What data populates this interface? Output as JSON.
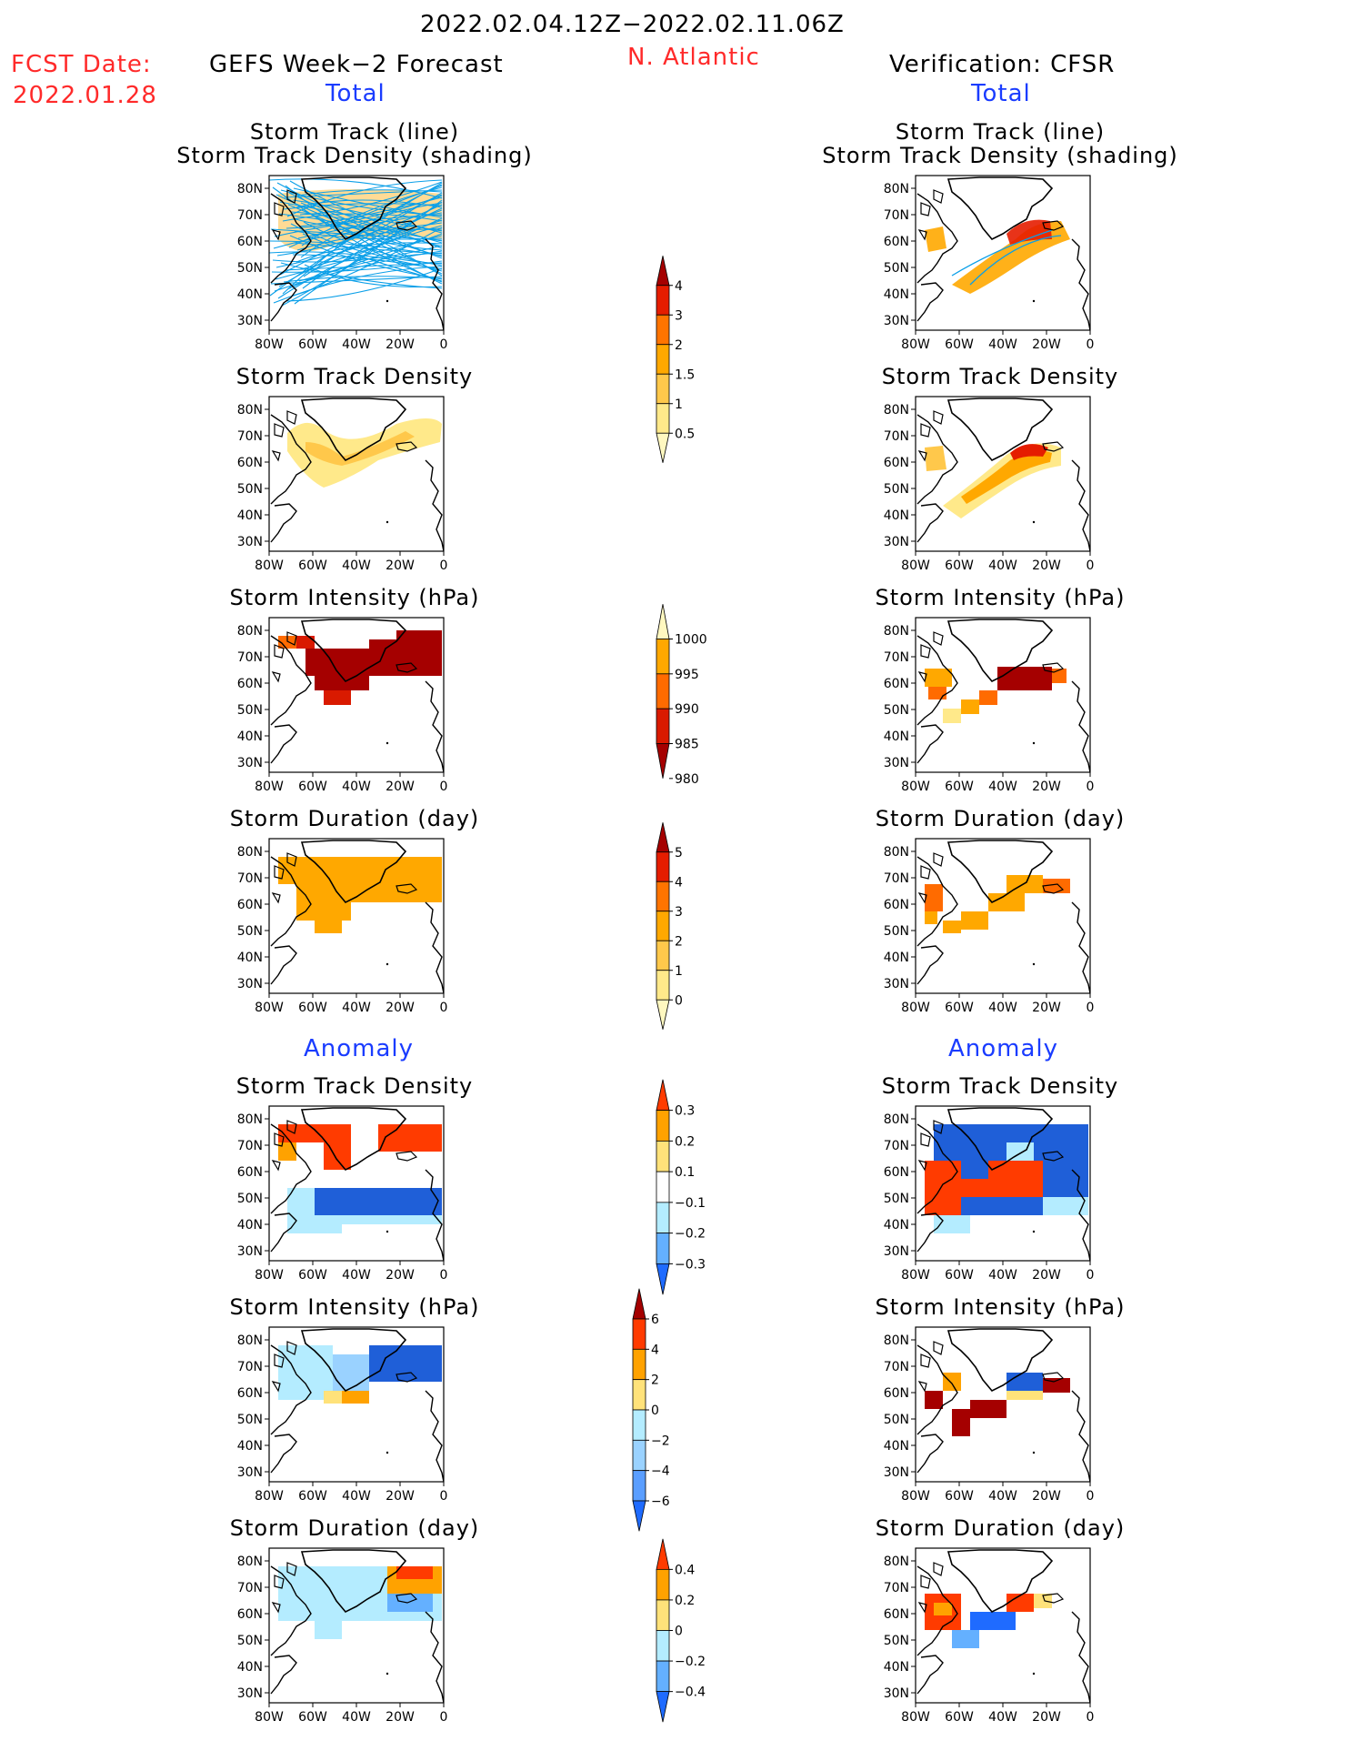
{
  "header": {
    "period": "2022.02.04.12Z−2022.02.11.06Z",
    "fcst_label": "FCST Date:",
    "fcst_date": "2022.01.28",
    "forecast_title": "GEFS Week−2 Forecast",
    "region": "N. Atlantic",
    "verification_title": "Verification: CFSR",
    "total_left": "Total",
    "total_right": "Total",
    "anomaly_left": "Anomaly",
    "anomaly_right": "Anomaly"
  },
  "panel_titles": {
    "track_line": "Storm Track (line)",
    "track_shading": "Storm Track Density (shading)",
    "density": "Storm Track Density",
    "intensity": "Storm Intensity (hPa)",
    "duration": "Storm Duration (day)"
  },
  "axes": {
    "lat_ticks": [
      "80N",
      "70N",
      "60N",
      "50N",
      "40N",
      "30N"
    ],
    "lon_ticks": [
      "80W",
      "60W",
      "40W",
      "20W",
      "0"
    ]
  },
  "colorbars": [
    {
      "id": "total-density",
      "labels": [
        "4",
        "3",
        "2",
        "1.5",
        "1",
        "0.5"
      ],
      "colors": [
        "#a50000",
        "#e51d00",
        "#ff7400",
        "#ffa800",
        "#ffc84b",
        "#ffe98a",
        "#fff8c0"
      ]
    },
    {
      "id": "total-intensity",
      "labels": [
        "1000",
        "995",
        "990",
        "985",
        "980"
      ],
      "colors": [
        "#fff8c0",
        "#ffa800",
        "#ff6b00",
        "#d91a00",
        "#a50000"
      ]
    },
    {
      "id": "total-duration",
      "labels": [
        "5",
        "4",
        "3",
        "2",
        "1",
        "0"
      ],
      "colors": [
        "#a50000",
        "#e51d00",
        "#ff7400",
        "#ffa800",
        "#ffc84b",
        "#ffe98a",
        "#fff8c0"
      ]
    },
    {
      "id": "anom-density",
      "labels": [
        "0.3",
        "0.2",
        "0.1",
        "−0.1",
        "−0.2",
        "−0.3"
      ],
      "colors": [
        "#ff3b00",
        "#ffa200",
        "#ffe27a",
        "#ffffff",
        "#b4ecff",
        "#64b0ff",
        "#1f6bff"
      ]
    },
    {
      "id": "anom-intensity",
      "labels": [
        "6",
        "4",
        "2",
        "0",
        "−2",
        "−4",
        "−6"
      ],
      "colors": [
        "#a50000",
        "#ff3b00",
        "#ffa200",
        "#ffe27a",
        "#b4ecff",
        "#9ad2ff",
        "#5a9eff",
        "#1f6bff"
      ]
    },
    {
      "id": "anom-duration",
      "labels": [
        "0.4",
        "0.2",
        "0",
        "−0.2",
        "−0.4"
      ],
      "colors": [
        "#ff3b00",
        "#ffa200",
        "#ffe27a",
        "#b4ecff",
        "#64b0ff",
        "#1f6bff"
      ]
    }
  ],
  "palette": {
    "track_line": "#0a9fe8",
    "high_red": "#a50000",
    "orange": "#ffa800",
    "light_yellow": "#ffe98a",
    "anomaly_blue": "#1f5fd8",
    "anomaly_light_blue": "#b4ecff",
    "anomaly_red": "#ff3b00"
  }
}
